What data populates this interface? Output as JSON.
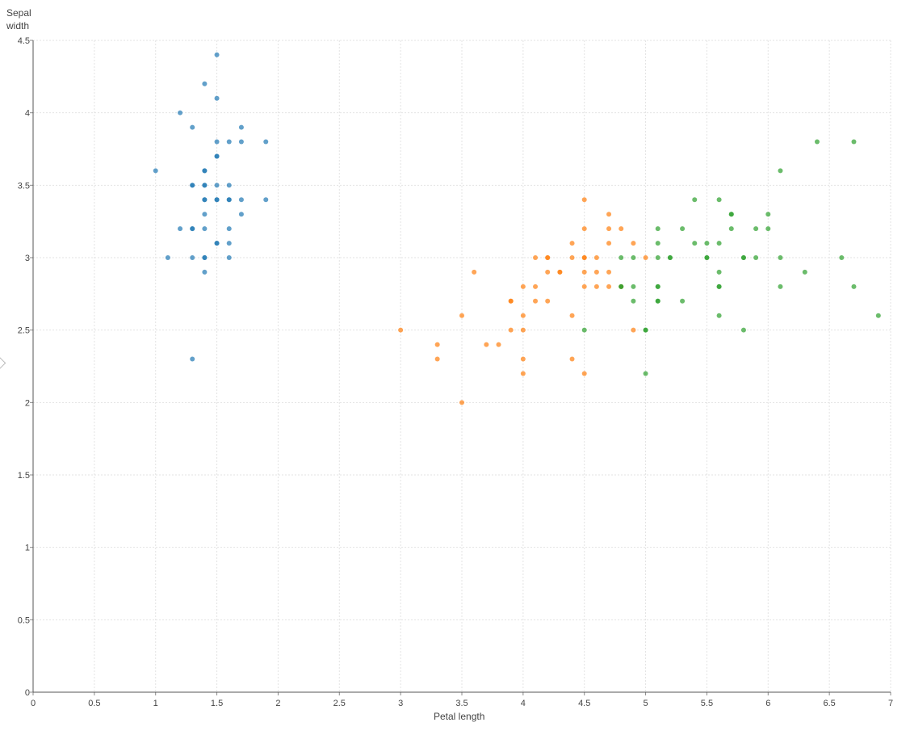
{
  "chart_data": {
    "type": "scatter",
    "title": "",
    "xlabel": "Petal length",
    "ylabel": "Sepal\nwidth",
    "xlim": [
      0,
      7
    ],
    "ylim": [
      0,
      4.5
    ],
    "xticks": [
      "0",
      "0.5",
      "1",
      "1.5",
      "2",
      "2.5",
      "3",
      "3.5",
      "4",
      "4.5",
      "5",
      "5.5",
      "6",
      "6.5",
      "7"
    ],
    "yticks": [
      "0",
      "0.5",
      "1",
      "1.5",
      "2",
      "2.5",
      "3",
      "3.5",
      "4",
      "4.5"
    ],
    "grid": true,
    "legend": "none",
    "series": [
      {
        "color": "#1f77b4",
        "points": [
          [
            1.5,
            4.4
          ],
          [
            1.4,
            4.2
          ],
          [
            1.5,
            4.1
          ],
          [
            1.2,
            4.0
          ],
          [
            1.3,
            3.9
          ],
          [
            1.7,
            3.9
          ],
          [
            1.5,
            3.8
          ],
          [
            1.6,
            3.8
          ],
          [
            1.7,
            3.8
          ],
          [
            1.9,
            3.8
          ],
          [
            1.5,
            3.7
          ],
          [
            1.5,
            3.7
          ],
          [
            1.0,
            3.6
          ],
          [
            1.4,
            3.6
          ],
          [
            1.4,
            3.6
          ],
          [
            1.3,
            3.5
          ],
          [
            1.3,
            3.5
          ],
          [
            1.4,
            3.5
          ],
          [
            1.4,
            3.5
          ],
          [
            1.5,
            3.5
          ],
          [
            1.6,
            3.5
          ],
          [
            1.4,
            3.4
          ],
          [
            1.4,
            3.4
          ],
          [
            1.5,
            3.4
          ],
          [
            1.5,
            3.4
          ],
          [
            1.6,
            3.4
          ],
          [
            1.6,
            3.4
          ],
          [
            1.7,
            3.4
          ],
          [
            1.9,
            3.4
          ],
          [
            1.4,
            3.3
          ],
          [
            1.7,
            3.3
          ],
          [
            1.2,
            3.2
          ],
          [
            1.3,
            3.2
          ],
          [
            1.3,
            3.2
          ],
          [
            1.4,
            3.2
          ],
          [
            1.6,
            3.2
          ],
          [
            1.5,
            3.1
          ],
          [
            1.5,
            3.1
          ],
          [
            1.6,
            3.1
          ],
          [
            1.1,
            3.0
          ],
          [
            1.3,
            3.0
          ],
          [
            1.4,
            3.0
          ],
          [
            1.4,
            3.0
          ],
          [
            1.6,
            3.0
          ],
          [
            1.4,
            2.9
          ],
          [
            1.3,
            2.3
          ]
        ]
      },
      {
        "color": "#ff7f0e",
        "points": [
          [
            4.5,
            3.4
          ],
          [
            4.7,
            3.3
          ],
          [
            4.5,
            3.2
          ],
          [
            4.7,
            3.2
          ],
          [
            4.8,
            3.2
          ],
          [
            4.4,
            3.1
          ],
          [
            4.7,
            3.1
          ],
          [
            4.9,
            3.1
          ],
          [
            4.1,
            3.0
          ],
          [
            4.2,
            3.0
          ],
          [
            4.2,
            3.0
          ],
          [
            4.4,
            3.0
          ],
          [
            4.5,
            3.0
          ],
          [
            4.5,
            3.0
          ],
          [
            4.6,
            3.0
          ],
          [
            5.0,
            3.0
          ],
          [
            3.6,
            2.9
          ],
          [
            4.2,
            2.9
          ],
          [
            4.3,
            2.9
          ],
          [
            4.3,
            2.9
          ],
          [
            4.5,
            2.9
          ],
          [
            4.6,
            2.9
          ],
          [
            4.7,
            2.9
          ],
          [
            4.0,
            2.8
          ],
          [
            4.1,
            2.8
          ],
          [
            4.5,
            2.8
          ],
          [
            4.6,
            2.8
          ],
          [
            4.7,
            2.8
          ],
          [
            4.8,
            2.8
          ],
          [
            3.9,
            2.7
          ],
          [
            3.9,
            2.7
          ],
          [
            4.1,
            2.7
          ],
          [
            4.2,
            2.7
          ],
          [
            3.5,
            2.6
          ],
          [
            4.0,
            2.6
          ],
          [
            4.4,
            2.6
          ],
          [
            3.0,
            2.5
          ],
          [
            3.9,
            2.5
          ],
          [
            4.0,
            2.5
          ],
          [
            4.9,
            2.5
          ],
          [
            3.3,
            2.4
          ],
          [
            3.7,
            2.4
          ],
          [
            3.8,
            2.4
          ],
          [
            3.3,
            2.3
          ],
          [
            4.0,
            2.3
          ],
          [
            4.4,
            2.3
          ],
          [
            4.0,
            2.2
          ],
          [
            4.5,
            2.2
          ],
          [
            3.5,
            2.0
          ]
        ]
      },
      {
        "color": "#2ca02c",
        "points": [
          [
            6.4,
            3.8
          ],
          [
            6.7,
            3.8
          ],
          [
            6.1,
            3.6
          ],
          [
            5.4,
            3.4
          ],
          [
            5.6,
            3.4
          ],
          [
            5.7,
            3.3
          ],
          [
            5.7,
            3.3
          ],
          [
            6.0,
            3.3
          ],
          [
            5.1,
            3.2
          ],
          [
            5.3,
            3.2
          ],
          [
            5.7,
            3.2
          ],
          [
            5.9,
            3.2
          ],
          [
            6.0,
            3.2
          ],
          [
            5.1,
            3.1
          ],
          [
            5.4,
            3.1
          ],
          [
            5.5,
            3.1
          ],
          [
            5.6,
            3.1
          ],
          [
            4.8,
            3.0
          ],
          [
            4.9,
            3.0
          ],
          [
            5.1,
            3.0
          ],
          [
            5.2,
            3.0
          ],
          [
            5.2,
            3.0
          ],
          [
            5.5,
            3.0
          ],
          [
            5.5,
            3.0
          ],
          [
            5.8,
            3.0
          ],
          [
            5.8,
            3.0
          ],
          [
            5.9,
            3.0
          ],
          [
            6.1,
            3.0
          ],
          [
            6.6,
            3.0
          ],
          [
            5.6,
            2.9
          ],
          [
            6.3,
            2.9
          ],
          [
            4.8,
            2.8
          ],
          [
            4.8,
            2.8
          ],
          [
            4.9,
            2.8
          ],
          [
            5.1,
            2.8
          ],
          [
            5.1,
            2.8
          ],
          [
            5.6,
            2.8
          ],
          [
            5.6,
            2.8
          ],
          [
            6.1,
            2.8
          ],
          [
            6.7,
            2.8
          ],
          [
            4.9,
            2.7
          ],
          [
            5.1,
            2.7
          ],
          [
            5.1,
            2.7
          ],
          [
            5.3,
            2.7
          ],
          [
            5.6,
            2.6
          ],
          [
            6.9,
            2.6
          ],
          [
            4.5,
            2.5
          ],
          [
            5.0,
            2.5
          ],
          [
            5.0,
            2.5
          ],
          [
            5.8,
            2.5
          ],
          [
            5.0,
            2.2
          ]
        ]
      }
    ]
  }
}
